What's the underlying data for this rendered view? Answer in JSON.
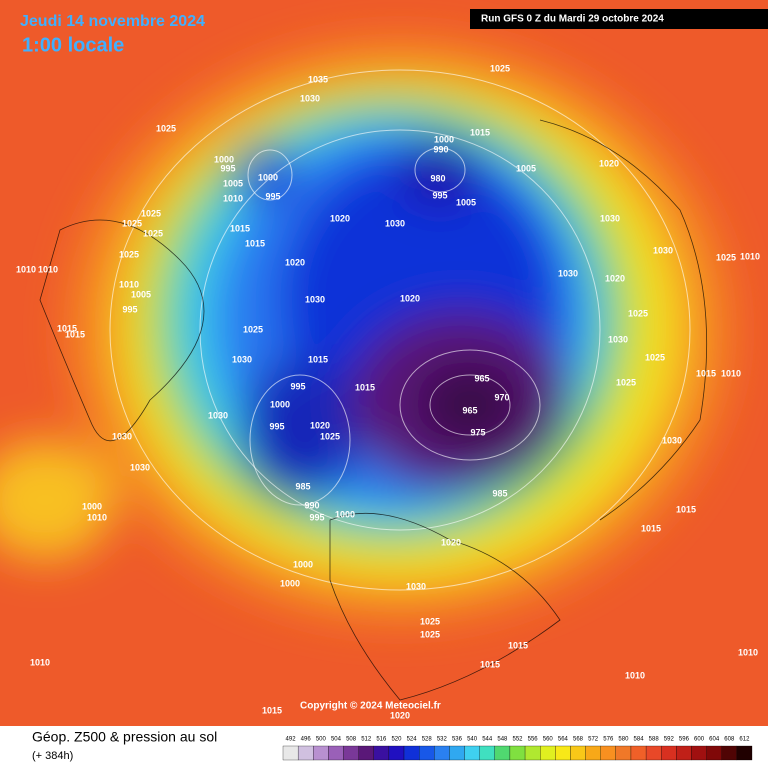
{
  "header": {
    "date": "Jeudi 14 novembre 2024",
    "time": "1:00 locale",
    "run": "Run GFS 0 Z du Mardi 29 octobre 2024"
  },
  "map": {
    "copyright": "Copyright © 2024 Meteociel.fr",
    "isobar_labels": [
      1035,
      1030,
      1025,
      1025,
      1000,
      995,
      1000,
      995,
      1010,
      1020,
      1030,
      1015,
      1015,
      1020,
      1030,
      1025,
      1030,
      1015,
      1015,
      995,
      1000,
      995,
      1020,
      1025,
      965,
      970,
      965,
      975,
      985,
      1000,
      990,
      980,
      995,
      1005,
      1005,
      1015,
      1020,
      1030,
      1030,
      1025,
      1030,
      1020,
      1025,
      1030,
      1025,
      1025,
      1015,
      1010,
      1030,
      1015,
      1015,
      1020,
      1030,
      1025,
      1025,
      1015,
      1015,
      1010,
      1010,
      1015,
      1020,
      1000,
      1000,
      1000,
      990,
      995,
      985,
      1010,
      1000,
      1030,
      1030,
      1030,
      1010,
      1005,
      995,
      1015,
      1015,
      1025,
      1025,
      1025,
      1025,
      1010,
      1010,
      1020,
      1005,
      1010,
      1010
    ]
  },
  "legend": {
    "title": "Géop. Z500 & pression au sol",
    "lead": "(+ 384h)",
    "scale": [
      492,
      496,
      500,
      504,
      508,
      512,
      516,
      520,
      524,
      528,
      532,
      536,
      540,
      544,
      548,
      552,
      556,
      560,
      564,
      568,
      572,
      576,
      580,
      584,
      588,
      592,
      596,
      600,
      604,
      608,
      612
    ],
    "colors": [
      "#e8e8e8",
      "#d0c0e0",
      "#b890d0",
      "#9a60b8",
      "#7a3898",
      "#5a1878",
      "#3a10a0",
      "#2010c0",
      "#1030d8",
      "#1858e8",
      "#2a80f0",
      "#30a8f0",
      "#3fd0f0",
      "#40e0c0",
      "#50d870",
      "#80e040",
      "#b0e830",
      "#e0f020",
      "#f8e818",
      "#f8c818",
      "#f8a818",
      "#f89020",
      "#f07828",
      "#f06028",
      "#e84828",
      "#d83020",
      "#c02018",
      "#a01010",
      "#800808",
      "#500404",
      "#200000"
    ]
  }
}
